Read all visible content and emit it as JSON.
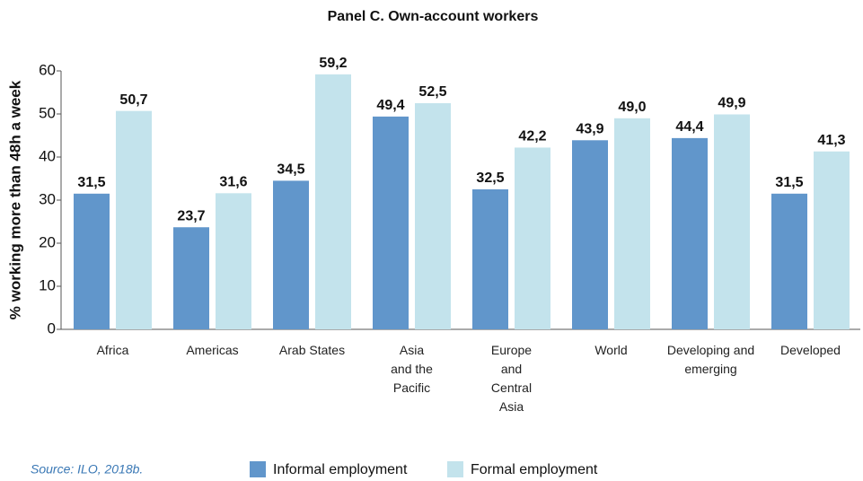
{
  "chart_data": {
    "type": "bar",
    "title": "Panel C. Own-account workers",
    "y_label": "% working more than 48h a week",
    "source": "Source: ILO, 2018b.",
    "categories": [
      "Africa",
      "Americas",
      "Arab States",
      "Asia\nand the\nPacific",
      "Europe\nand\nCentral\nAsia",
      "World",
      "Developing and\nemerging",
      "Developed"
    ],
    "series": [
      {
        "name": "Informal employment",
        "color": "#6196cb",
        "values": [
          31.5,
          23.7,
          34.5,
          49.4,
          32.5,
          43.9,
          44.4,
          31.5
        ],
        "value_labels": [
          "31,5",
          "23,7",
          "34,5",
          "49,4",
          "32,5",
          "43,9",
          "44,4",
          "31,5"
        ]
      },
      {
        "name": "Formal employment",
        "color": "#c3e3ec",
        "values": [
          50.7,
          31.6,
          59.2,
          52.5,
          42.2,
          49.0,
          49.9,
          41.3
        ],
        "value_labels": [
          "50,7",
          "31,6",
          "59,2",
          "52,5",
          "42,2",
          "49,0",
          "49,9",
          "41,3"
        ]
      }
    ],
    "ylim": [
      0,
      60
    ],
    "yticks": [
      0,
      10,
      20,
      30,
      40,
      50,
      60
    ],
    "legend": "bottom"
  }
}
